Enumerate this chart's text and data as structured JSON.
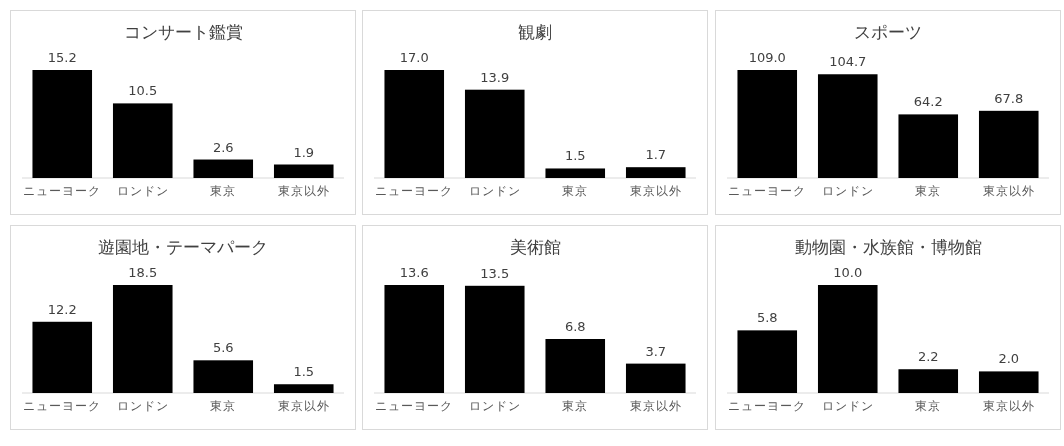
{
  "chart_data": [
    {
      "type": "bar",
      "title": "コンサート鑑賞",
      "categories": [
        "ニューヨーク",
        "ロンドン",
        "東京",
        "東京以外"
      ],
      "values": [
        15.2,
        10.5,
        2.6,
        1.9
      ],
      "value_labels": [
        "15.2",
        "10.5",
        "2.6",
        "1.9"
      ],
      "color": "#000000"
    },
    {
      "type": "bar",
      "title": "観劇",
      "categories": [
        "ニューヨーク",
        "ロンドン",
        "東京",
        "東京以外"
      ],
      "values": [
        17.0,
        13.9,
        1.5,
        1.7
      ],
      "value_labels": [
        "17.0",
        "13.9",
        "1.5",
        "1.7"
      ],
      "color": "#000000"
    },
    {
      "type": "bar",
      "title": "スポーツ",
      "categories": [
        "ニューヨーク",
        "ロンドン",
        "東京",
        "東京以外"
      ],
      "values": [
        109.0,
        104.7,
        64.2,
        67.8
      ],
      "value_labels": [
        "109.0",
        "104.7",
        "64.2",
        "67.8"
      ],
      "color": "#000000"
    },
    {
      "type": "bar",
      "title": "遊園地・テーマパーク",
      "categories": [
        "ニューヨーク",
        "ロンドン",
        "東京",
        "東京以外"
      ],
      "values": [
        12.2,
        18.5,
        5.6,
        1.5
      ],
      "value_labels": [
        "12.2",
        "18.5",
        "5.6",
        "1.5"
      ],
      "color": "#000000"
    },
    {
      "type": "bar",
      "title": "美術館",
      "categories": [
        "ニューヨーク",
        "ロンドン",
        "東京",
        "東京以外"
      ],
      "values": [
        13.6,
        13.5,
        6.8,
        3.7
      ],
      "value_labels": [
        "13.6",
        "13.5",
        "6.8",
        "3.7"
      ],
      "color": "#000000"
    },
    {
      "type": "bar",
      "title": "動物園・水族館・博物館",
      "categories": [
        "ニューヨーク",
        "ロンドン",
        "東京",
        "東京以外"
      ],
      "values": [
        5.8,
        10.0,
        2.2,
        2.0
      ],
      "value_labels": [
        "5.8",
        "10.0",
        "2.2",
        "2.0"
      ],
      "color": "#000000"
    }
  ]
}
